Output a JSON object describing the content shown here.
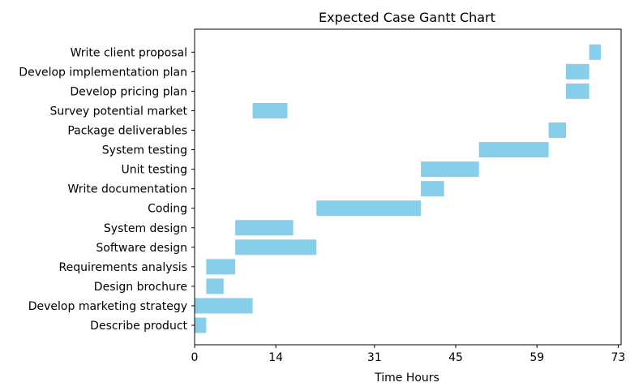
{
  "chart_data": {
    "type": "bar",
    "orientation": "horizontal",
    "title": "Expected Case Gantt Chart",
    "xlabel": "Time Hours",
    "ylabel": "",
    "xlim": [
      0,
      73.5
    ],
    "xticks": [
      0,
      14,
      31,
      45,
      59,
      73
    ],
    "grid": false,
    "bar_color": "#87CEEB",
    "tasks": [
      {
        "name": "Describe product",
        "start": 0,
        "end": 2
      },
      {
        "name": "Develop marketing strategy",
        "start": 0,
        "end": 10
      },
      {
        "name": "Design brochure",
        "start": 2,
        "end": 5
      },
      {
        "name": "Requirements analysis",
        "start": 2,
        "end": 7
      },
      {
        "name": "Software design",
        "start": 7,
        "end": 21
      },
      {
        "name": "System design",
        "start": 7,
        "end": 17
      },
      {
        "name": "Coding",
        "start": 21,
        "end": 39
      },
      {
        "name": "Write documentation",
        "start": 39,
        "end": 43
      },
      {
        "name": "Unit testing",
        "start": 39,
        "end": 49
      },
      {
        "name": "System testing",
        "start": 49,
        "end": 61
      },
      {
        "name": "Package deliverables",
        "start": 61,
        "end": 64
      },
      {
        "name": "Survey potential market",
        "start": 10,
        "end": 16
      },
      {
        "name": "Develop pricing plan",
        "start": 64,
        "end": 68
      },
      {
        "name": "Develop implementation plan",
        "start": 64,
        "end": 68
      },
      {
        "name": "Write client proposal",
        "start": 68,
        "end": 70
      }
    ]
  }
}
